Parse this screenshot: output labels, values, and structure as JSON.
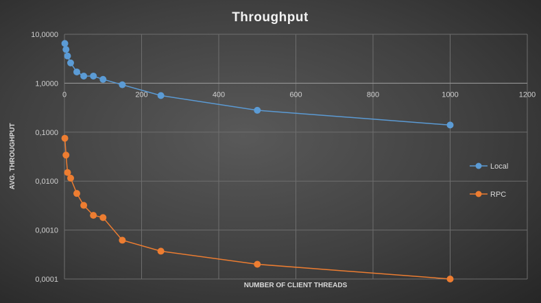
{
  "chart_data": {
    "type": "line",
    "title": "Throughput",
    "xlabel": "NUMBER OF CLIENT THREADS",
    "ylabel": "AVG. THROUGHPUT",
    "xlim": [
      0,
      1200
    ],
    "xticks": [
      0,
      200,
      400,
      600,
      800,
      1000,
      1200
    ],
    "ylim": [
      0.0001,
      10
    ],
    "yscale": "log",
    "yticks": [
      10,
      1,
      0.1,
      0.01,
      0.001,
      0.0001
    ],
    "ytick_labels": [
      "10,0000",
      "1,0000",
      "0,1000",
      "0,0100",
      "0,0010",
      "0,0001"
    ],
    "grid": true,
    "legend_position": "right",
    "series": [
      {
        "name": "Local",
        "color": "#5b9bd5",
        "x": [
          1,
          4,
          8,
          16,
          32,
          50,
          75,
          100,
          150,
          250,
          500,
          1000
        ],
        "y": [
          6.5,
          4.9,
          3.6,
          2.6,
          1.7,
          1.4,
          1.4,
          1.2,
          0.93,
          0.56,
          0.28,
          0.14
        ]
      },
      {
        "name": "RPC",
        "color": "#ed7d31",
        "x": [
          1,
          4,
          8,
          16,
          32,
          50,
          75,
          100,
          150,
          250,
          500,
          1000
        ],
        "y": [
          0.075,
          0.034,
          0.015,
          0.0115,
          0.0056,
          0.0032,
          0.002,
          0.0018,
          0.00062,
          0.00037,
          0.0002,
          0.0001
        ]
      }
    ]
  }
}
